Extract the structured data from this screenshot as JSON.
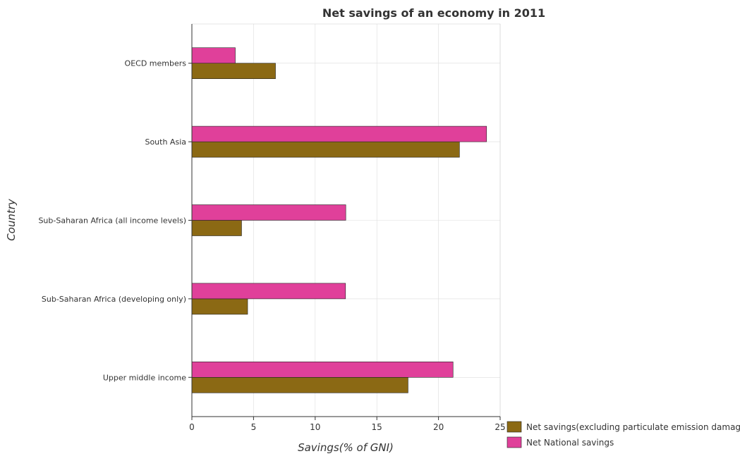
{
  "chart_data": {
    "type": "bar",
    "orientation": "horizontal",
    "title": "Net savings of an economy in 2011",
    "xlabel": "Savings(% of GNI)",
    "ylabel": "Country",
    "categories": [
      "OECD members",
      "South Asia",
      "Sub-Saharan Africa (all income levels)",
      "Sub-Saharan Africa (developing only)",
      "Upper middle income"
    ],
    "series": [
      {
        "name": "Net savings(excluding particulate emission damage)",
        "color": "#8b6914",
        "values": [
          6.78,
          21.7,
          4.03,
          4.52,
          17.53
        ]
      },
      {
        "name": "Net National savings",
        "color": "#e0409a",
        "values": [
          3.52,
          23.9,
          12.48,
          12.46,
          21.18
        ]
      }
    ],
    "xlim": [
      0,
      25
    ],
    "xticks": [
      0,
      5,
      10,
      15,
      20,
      25
    ],
    "grid": true,
    "legend_position": "bottom-right"
  }
}
